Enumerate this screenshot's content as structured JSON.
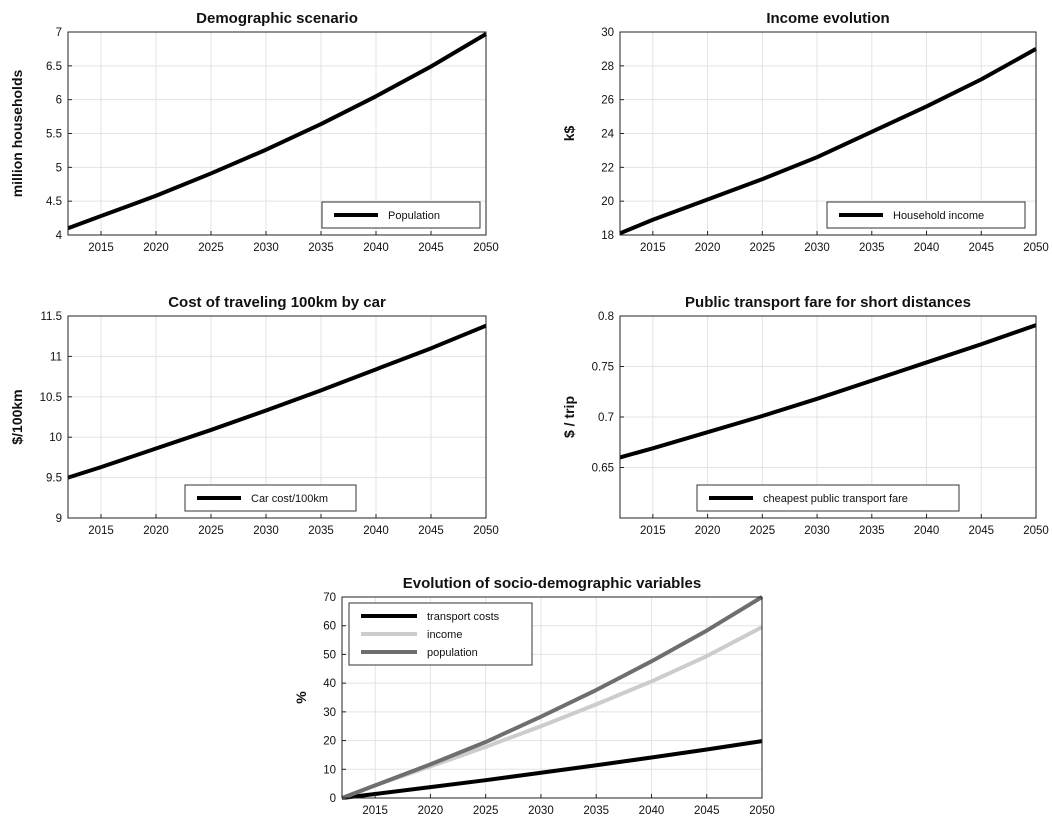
{
  "chart_data": [
    {
      "type": "line",
      "title": "Demographic scenario",
      "xlabel": "",
      "ylabel": "million households",
      "xlim": [
        2012,
        2050
      ],
      "ylim": [
        4,
        7
      ],
      "xticks": [
        2015,
        2020,
        2025,
        2030,
        2035,
        2040,
        2045,
        2050
      ],
      "yticks": [
        4,
        4.5,
        5,
        5.5,
        6,
        6.5,
        7
      ],
      "ytick_labels": [
        "4",
        "4.5",
        "5",
        "5.5",
        "6",
        "6.5",
        "7"
      ],
      "grid": true,
      "legend": "bottom-right",
      "series": [
        {
          "name": "Population",
          "color": "#000000",
          "x": [
            2012,
            2015,
            2020,
            2025,
            2030,
            2035,
            2040,
            2045,
            2050
          ],
          "y": [
            4.1,
            4.28,
            4.58,
            4.91,
            5.26,
            5.64,
            6.05,
            6.49,
            6.97
          ]
        }
      ]
    },
    {
      "type": "line",
      "title": "Income evolution",
      "xlabel": "",
      "ylabel": "k$",
      "xlim": [
        2012,
        2050
      ],
      "ylim": [
        18,
        30
      ],
      "xticks": [
        2015,
        2020,
        2025,
        2030,
        2035,
        2040,
        2045,
        2050
      ],
      "yticks": [
        18,
        20,
        22,
        24,
        26,
        28,
        30
      ],
      "ytick_labels": [
        "18",
        "20",
        "22",
        "24",
        "26",
        "28",
        "30"
      ],
      "grid": true,
      "legend": "bottom-right",
      "series": [
        {
          "name": "Household income",
          "color": "#000000",
          "x": [
            2012,
            2015,
            2020,
            2025,
            2030,
            2035,
            2040,
            2045,
            2050
          ],
          "y": [
            18.1,
            18.9,
            20.1,
            21.3,
            22.6,
            24.1,
            25.6,
            27.2,
            29.0
          ]
        }
      ]
    },
    {
      "type": "line",
      "title": "Cost of traveling 100km by car",
      "xlabel": "",
      "ylabel": "$/100km",
      "xlim": [
        2012,
        2050
      ],
      "ylim": [
        9,
        11.5
      ],
      "xticks": [
        2015,
        2020,
        2025,
        2030,
        2035,
        2040,
        2045,
        2050
      ],
      "yticks": [
        9,
        9.5,
        10,
        10.5,
        11,
        11.5
      ],
      "ytick_labels": [
        "9",
        "9.5",
        "10",
        "10.5",
        "11",
        "11.5"
      ],
      "grid": true,
      "legend": "bottom-center",
      "series": [
        {
          "name": "Car cost/100km",
          "color": "#000000",
          "x": [
            2012,
            2015,
            2020,
            2025,
            2030,
            2035,
            2040,
            2045,
            2050
          ],
          "y": [
            9.5,
            9.63,
            9.86,
            10.09,
            10.33,
            10.58,
            10.84,
            11.1,
            11.38
          ]
        }
      ]
    },
    {
      "type": "line",
      "title": "Public transport fare for short distances",
      "xlabel": "",
      "ylabel": "$ / trip",
      "xlim": [
        2012,
        2050
      ],
      "ylim": [
        0.6,
        0.8
      ],
      "xticks": [
        2015,
        2020,
        2025,
        2030,
        2035,
        2040,
        2045,
        2050
      ],
      "yticks": [
        0.65,
        0.7,
        0.75,
        0.8
      ],
      "ytick_labels": [
        "0.65",
        "0.7",
        "0.75",
        "0.8"
      ],
      "grid": true,
      "legend": "bottom-center",
      "series": [
        {
          "name": "cheapest public transport fare",
          "color": "#000000",
          "x": [
            2012,
            2015,
            2020,
            2025,
            2030,
            2035,
            2040,
            2045,
            2050
          ],
          "y": [
            0.66,
            0.669,
            0.685,
            0.701,
            0.718,
            0.736,
            0.754,
            0.772,
            0.791
          ]
        }
      ]
    },
    {
      "type": "line",
      "title": "Evolution of socio-demographic variables",
      "xlabel": "",
      "ylabel": "%",
      "xlim": [
        2012,
        2050
      ],
      "ylim": [
        0,
        70
      ],
      "xticks": [
        2015,
        2020,
        2025,
        2030,
        2035,
        2040,
        2045,
        2050
      ],
      "yticks": [
        0,
        10,
        20,
        30,
        40,
        50,
        60,
        70
      ],
      "ytick_labels": [
        "0",
        "10",
        "20",
        "30",
        "40",
        "50",
        "60",
        "70"
      ],
      "grid": true,
      "legend": "top-left",
      "series": [
        {
          "name": "transport costs",
          "color": "#000000",
          "x": [
            2012,
            2015,
            2020,
            2025,
            2030,
            2035,
            2040,
            2045,
            2050
          ],
          "y": [
            0,
            1.4,
            3.8,
            6.2,
            8.8,
            11.4,
            14.1,
            16.9,
            19.8
          ]
        },
        {
          "name": "income",
          "color": "#cccccc",
          "x": [
            2012,
            2015,
            2020,
            2025,
            2030,
            2035,
            2040,
            2045,
            2050
          ],
          "y": [
            0,
            4.4,
            11.0,
            17.8,
            25.0,
            32.6,
            40.6,
            49.4,
            59.5
          ]
        },
        {
          "name": "population",
          "color": "#6e6e6e",
          "x": [
            2012,
            2015,
            2020,
            2025,
            2030,
            2035,
            2040,
            2045,
            2050
          ],
          "y": [
            0,
            4.4,
            11.7,
            19.5,
            28.3,
            37.6,
            47.6,
            58.3,
            70.0
          ]
        }
      ]
    }
  ]
}
